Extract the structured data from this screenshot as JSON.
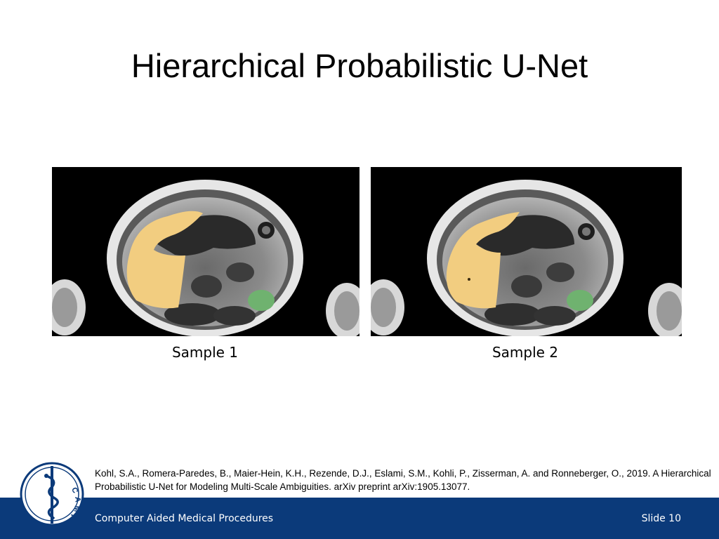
{
  "slide": {
    "title": "Hierarchical Probabilistic U-Net",
    "samples": [
      {
        "caption": "Sample 1"
      },
      {
        "caption": "Sample 2"
      }
    ],
    "citation": "Kohl, S.A., Romera-Paredes, B., Maier-Hein, K.H., Rezende, D.J., Eslami, S.M., Kohli, P., Zisserman, A. and Ronneberger, O., 2019. A Hierarchical Probabilistic U-Net for Modeling Multi-Scale Ambiguities. arXiv preprint arXiv:1905.13077.",
    "footer": {
      "left": "Computer Aided Medical Procedures",
      "right": "Slide 10"
    },
    "logo": {
      "text": "CAMP",
      "icon": "caduceus-icon"
    }
  },
  "colors": {
    "footer_bar": "#0b3a7a",
    "liver_segmentation": "#f2cd80",
    "spleen_segmentation": "#6fb26f",
    "title_text": "#000000"
  }
}
